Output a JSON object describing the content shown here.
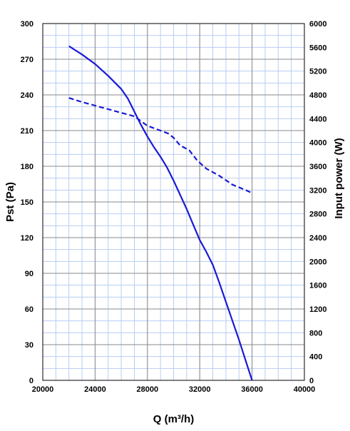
{
  "chart_data": {
    "type": "line",
    "xlabel": "Q (m³/h)",
    "ylabel": "Pst (Pa)",
    "y2label": "Input power  (W)",
    "xlim": [
      20000,
      40000
    ],
    "ylim": [
      0,
      300
    ],
    "y2lim": [
      0,
      6000
    ],
    "xticks": [
      20000,
      24000,
      28000,
      32000,
      36000,
      40000
    ],
    "yticks": [
      0,
      30,
      60,
      90,
      120,
      150,
      180,
      210,
      240,
      270,
      300
    ],
    "y2ticks": [
      0,
      400,
      800,
      1200,
      1600,
      2000,
      2400,
      2800,
      3200,
      3600,
      4000,
      4400,
      4800,
      5200,
      5600,
      6000
    ],
    "grid": true,
    "series": [
      {
        "axis": "left",
        "style": "solid",
        "color": "#1a1ad6",
        "x": [
          22000,
          23000,
          24000,
          25000,
          26000,
          26500,
          27000,
          27500,
          28000,
          28500,
          29000,
          29500,
          30000,
          30500,
          31000,
          31500,
          32000,
          32500,
          33000,
          33500,
          34000,
          34500,
          35000,
          35500,
          36000
        ],
        "y": [
          281,
          274,
          266,
          256,
          245,
          237,
          226,
          215,
          205,
          196,
          188,
          179,
          168,
          156,
          144,
          131,
          118,
          108,
          97,
          82,
          66,
          50,
          34,
          17,
          0
        ]
      },
      {
        "axis": "right",
        "style": "dashed",
        "color": "#1a1ad6",
        "x": [
          22000,
          23000,
          24000,
          25000,
          26000,
          27000,
          28000,
          29000,
          29600,
          30000,
          30500,
          31200,
          31800,
          32500,
          33500,
          34500,
          35500,
          36000
        ],
        "y": [
          4750,
          4680,
          4620,
          4560,
          4500,
          4440,
          4280,
          4200,
          4150,
          4080,
          3950,
          3870,
          3700,
          3560,
          3440,
          3290,
          3200,
          3150
        ]
      }
    ]
  }
}
